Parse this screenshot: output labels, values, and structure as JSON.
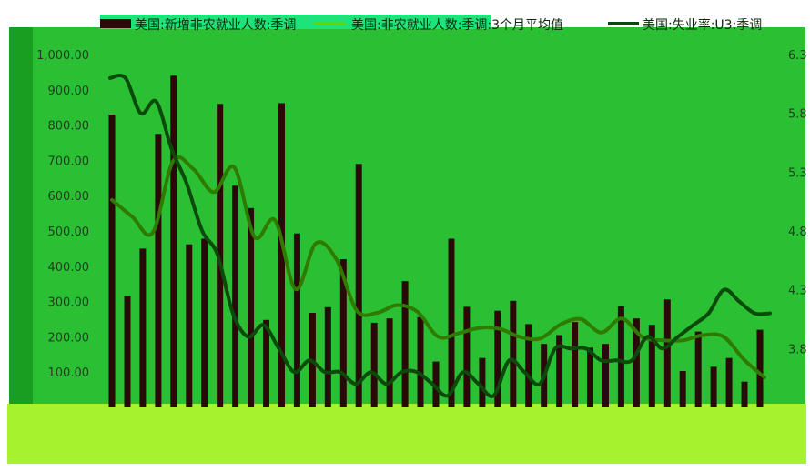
{
  "colors": {
    "plot_bg": "#2bc034",
    "bar": "#2a0a08",
    "avg_line": "#2f7a00",
    "rate_line": "#0b4a0b",
    "bottom_band": "#a6f22c",
    "legend_band": "#1ee27a",
    "left_frame": "#1a9e22"
  },
  "chart_data": {
    "type": "bar",
    "title": "",
    "xlabel": "",
    "ylabel": "",
    "legend_position": "top",
    "grid": false,
    "legend": [
      {
        "name": "美国:新增非农就业人数:季调",
        "marker": "bar",
        "color": "#2a0a08"
      },
      {
        "name": "美国:非农就业人数:季调:3个月平均值",
        "marker": "line",
        "color": "#6bd400"
      },
      {
        "name": "美国:失业率:U3:季调",
        "marker": "line",
        "color": "#0b4a0b"
      }
    ],
    "y_left": {
      "ticks": [
        100,
        200,
        300,
        400,
        500,
        600,
        700,
        800,
        900,
        1000
      ],
      "tick_labels": [
        "100.00",
        "200.00",
        "300.00",
        "400.00",
        "500.00",
        "600.00",
        "700.00",
        "800.00",
        "900.00",
        "1,000.00"
      ],
      "min": 0,
      "max": 1000
    },
    "y_right": {
      "ticks": [
        3.8,
        4.3,
        4.8,
        5.3,
        5.8,
        6.3
      ],
      "tick_labels": [
        "3.8",
        "4.3",
        "4.8",
        "5.3",
        "5.8",
        "6.3"
      ],
      "min": 3.3,
      "max": 6.3
    },
    "series": [
      {
        "name": "美国:新增非农就业人数:季调",
        "type": "bar",
        "axis": "left",
        "values": [
          830,
          315,
          450,
          775,
          940,
          462,
          478,
          860,
          628,
          565,
          248,
          862,
          493,
          268,
          284,
          420,
          690,
          240,
          252,
          358,
          256,
          130,
          478,
          285,
          140,
          274,
          302,
          236,
          180,
          205,
          242,
          169,
          180,
          287,
          252,
          234,
          306,
          103,
          215,
          115,
          140,
          73,
          220
        ]
      },
      {
        "name": "美国:非农就业人数:季调:3个月平均值",
        "type": "line",
        "axis": "left",
        "values": [
          588,
          540,
          495,
          698,
          675,
          610,
          680,
          483,
          530,
          335,
          465,
          420,
          275,
          268,
          290,
          270,
          200,
          210,
          225,
          223,
          200,
          195,
          235,
          250,
          212,
          252,
          200,
          190,
          190,
          205,
          200,
          135,
          85
        ]
      },
      {
        "name": "美国:失业率:U3:季调",
        "type": "line",
        "axis": "right",
        "values": [
          6.1,
          6.1,
          5.8,
          5.9,
          5.5,
          5.2,
          4.8,
          4.6,
          4.1,
          3.9,
          4.0,
          3.8,
          3.6,
          3.7,
          3.6,
          3.6,
          3.5,
          3.6,
          3.5,
          3.6,
          3.6,
          3.5,
          3.4,
          3.6,
          3.5,
          3.4,
          3.7,
          3.6,
          3.5,
          3.8,
          3.8,
          3.8,
          3.7,
          3.7,
          3.7,
          3.9,
          3.8,
          3.9,
          4.0,
          4.1,
          4.3,
          4.2,
          4.1,
          4.1
        ]
      }
    ]
  }
}
